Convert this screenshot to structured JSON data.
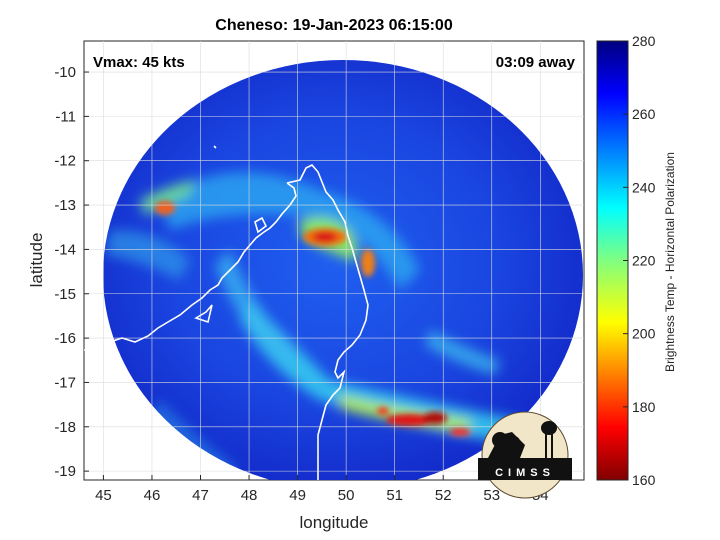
{
  "title": "Cheneso: 19-Jan-2023 06:15:00",
  "annotations": {
    "vmax": "Vmax: 45 kts",
    "away": "03:09 away"
  },
  "axes": {
    "xlabel": "longitude",
    "ylabel": "latitude",
    "xlim": [
      44.6,
      54.9
    ],
    "ylim": [
      -19.2,
      -9.3
    ],
    "xticks": [
      "45",
      "46",
      "47",
      "48",
      "49",
      "50",
      "51",
      "52",
      "53",
      "54"
    ],
    "yticks": [
      "-10",
      "-11",
      "-12",
      "-13",
      "-14",
      "-15",
      "-16",
      "-17",
      "-18",
      "-19"
    ]
  },
  "colorbar": {
    "label": "Brightness Temp - Horizontal Polarization",
    "ticks": [
      "280",
      "260",
      "240",
      "220",
      "200",
      "180",
      "160"
    ],
    "range": [
      160,
      280
    ],
    "colormap": "jet"
  },
  "logo": {
    "text": "CIMSS"
  },
  "colors": {
    "background_cold": "#1530d8",
    "warm_core": "#cc1010",
    "coast": "#ffffff"
  }
}
